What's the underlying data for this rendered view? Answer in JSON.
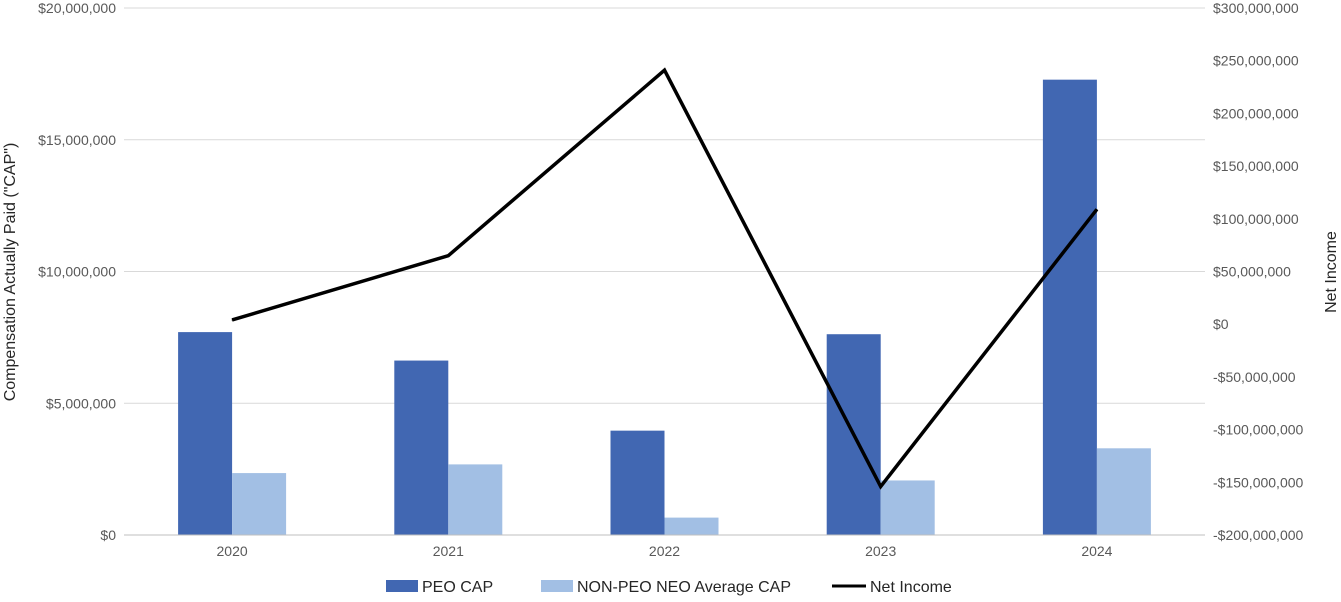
{
  "chart_data": {
    "type": "bar",
    "title": "",
    "categories": [
      "2020",
      "2021",
      "2022",
      "2023",
      "2024"
    ],
    "series": [
      {
        "name": "PEO CAP",
        "type": "bar",
        "axis": "left",
        "color": "#4167B2",
        "values": [
          7700000,
          6620000,
          3960000,
          7620000,
          17280000
        ]
      },
      {
        "name": "NON-PEO NEO Average CAP",
        "type": "bar",
        "axis": "left",
        "color": "#A2BFE4",
        "values": [
          2350000,
          2680000,
          660000,
          2070000,
          3290000
        ]
      },
      {
        "name": "Net Income",
        "type": "line",
        "axis": "right",
        "color": "#000000",
        "values": [
          4000000,
          65000000,
          241000000,
          -154000000,
          109000000
        ]
      }
    ],
    "left_axis": {
      "label": "Compensation Actually Paid (\"CAP\")",
      "ylim": [
        0,
        20000000
      ],
      "ticks": [
        0,
        5000000,
        10000000,
        15000000,
        20000000
      ],
      "tick_labels": [
        "$0",
        "$5,000,000",
        "$10,000,000",
        "$15,000,000",
        "$20,000,000"
      ]
    },
    "right_axis": {
      "label": "Net Income",
      "ylim": [
        -200000000,
        300000000
      ],
      "ticks": [
        -200000000,
        -150000000,
        -100000000,
        -50000000,
        0,
        50000000,
        100000000,
        150000000,
        200000000,
        250000000,
        300000000
      ],
      "tick_labels": [
        "-$200,000,000",
        "-$150,000,000",
        "-$100,000,000",
        "-$50,000,000",
        "$0",
        "$50,000,000",
        "$100,000,000",
        "$150,000,000",
        "$200,000,000",
        "$250,000,000",
        "$300,000,000"
      ]
    },
    "grid": true,
    "legend_position": "bottom-center"
  }
}
